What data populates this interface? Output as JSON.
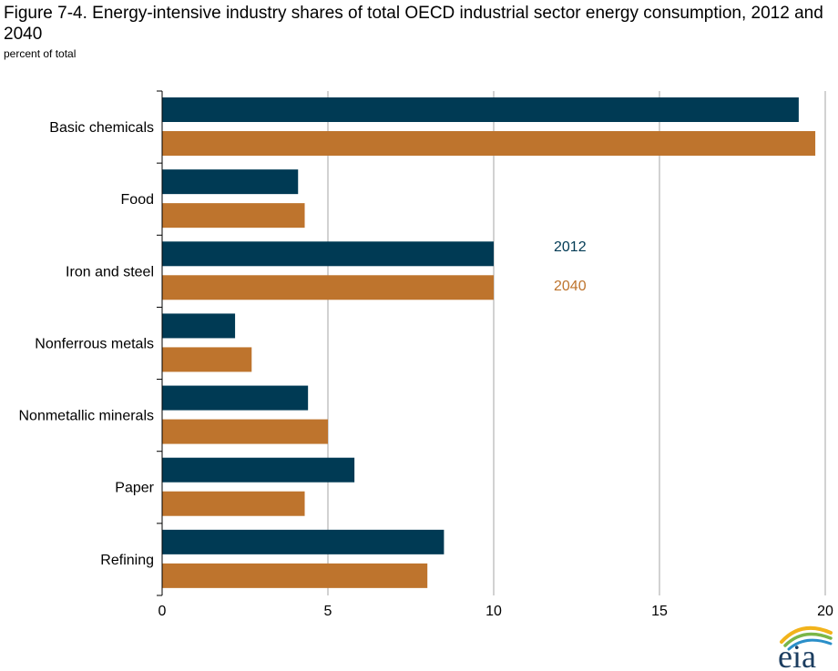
{
  "header": {
    "title": "Figure 7-4. Energy-intensive industry shares of total OECD industrial sector energy consumption, 2012 and 2040",
    "subtitle": "percent of total"
  },
  "logo": {
    "text": "eia"
  },
  "colors": {
    "series_2012": "#003a54",
    "series_2040": "#be742d",
    "grid": "#a6a6a6",
    "axis": "#000000"
  },
  "chart_data": {
    "type": "bar",
    "orientation": "horizontal",
    "title": "Figure 7-4. Energy-intensive industry shares of total OECD industrial sector energy consumption, 2012 and 2040",
    "ylabel": "percent of total",
    "categories": [
      "Basic chemicals",
      "Food",
      "Iron and steel",
      "Nonferrous metals",
      "Nonmetallic minerals",
      "Paper",
      "Refining"
    ],
    "series": [
      {
        "name": "2012",
        "values": [
          19.2,
          4.1,
          10.0,
          2.2,
          4.4,
          5.8,
          8.5
        ]
      },
      {
        "name": "2040",
        "values": [
          19.7,
          4.3,
          10.0,
          2.7,
          5.0,
          4.3,
          8.0
        ]
      }
    ],
    "xlim": [
      0,
      20
    ],
    "xticks": [
      0,
      5,
      10,
      15,
      20
    ],
    "grid": true,
    "legend_position": "inside-center-right"
  }
}
